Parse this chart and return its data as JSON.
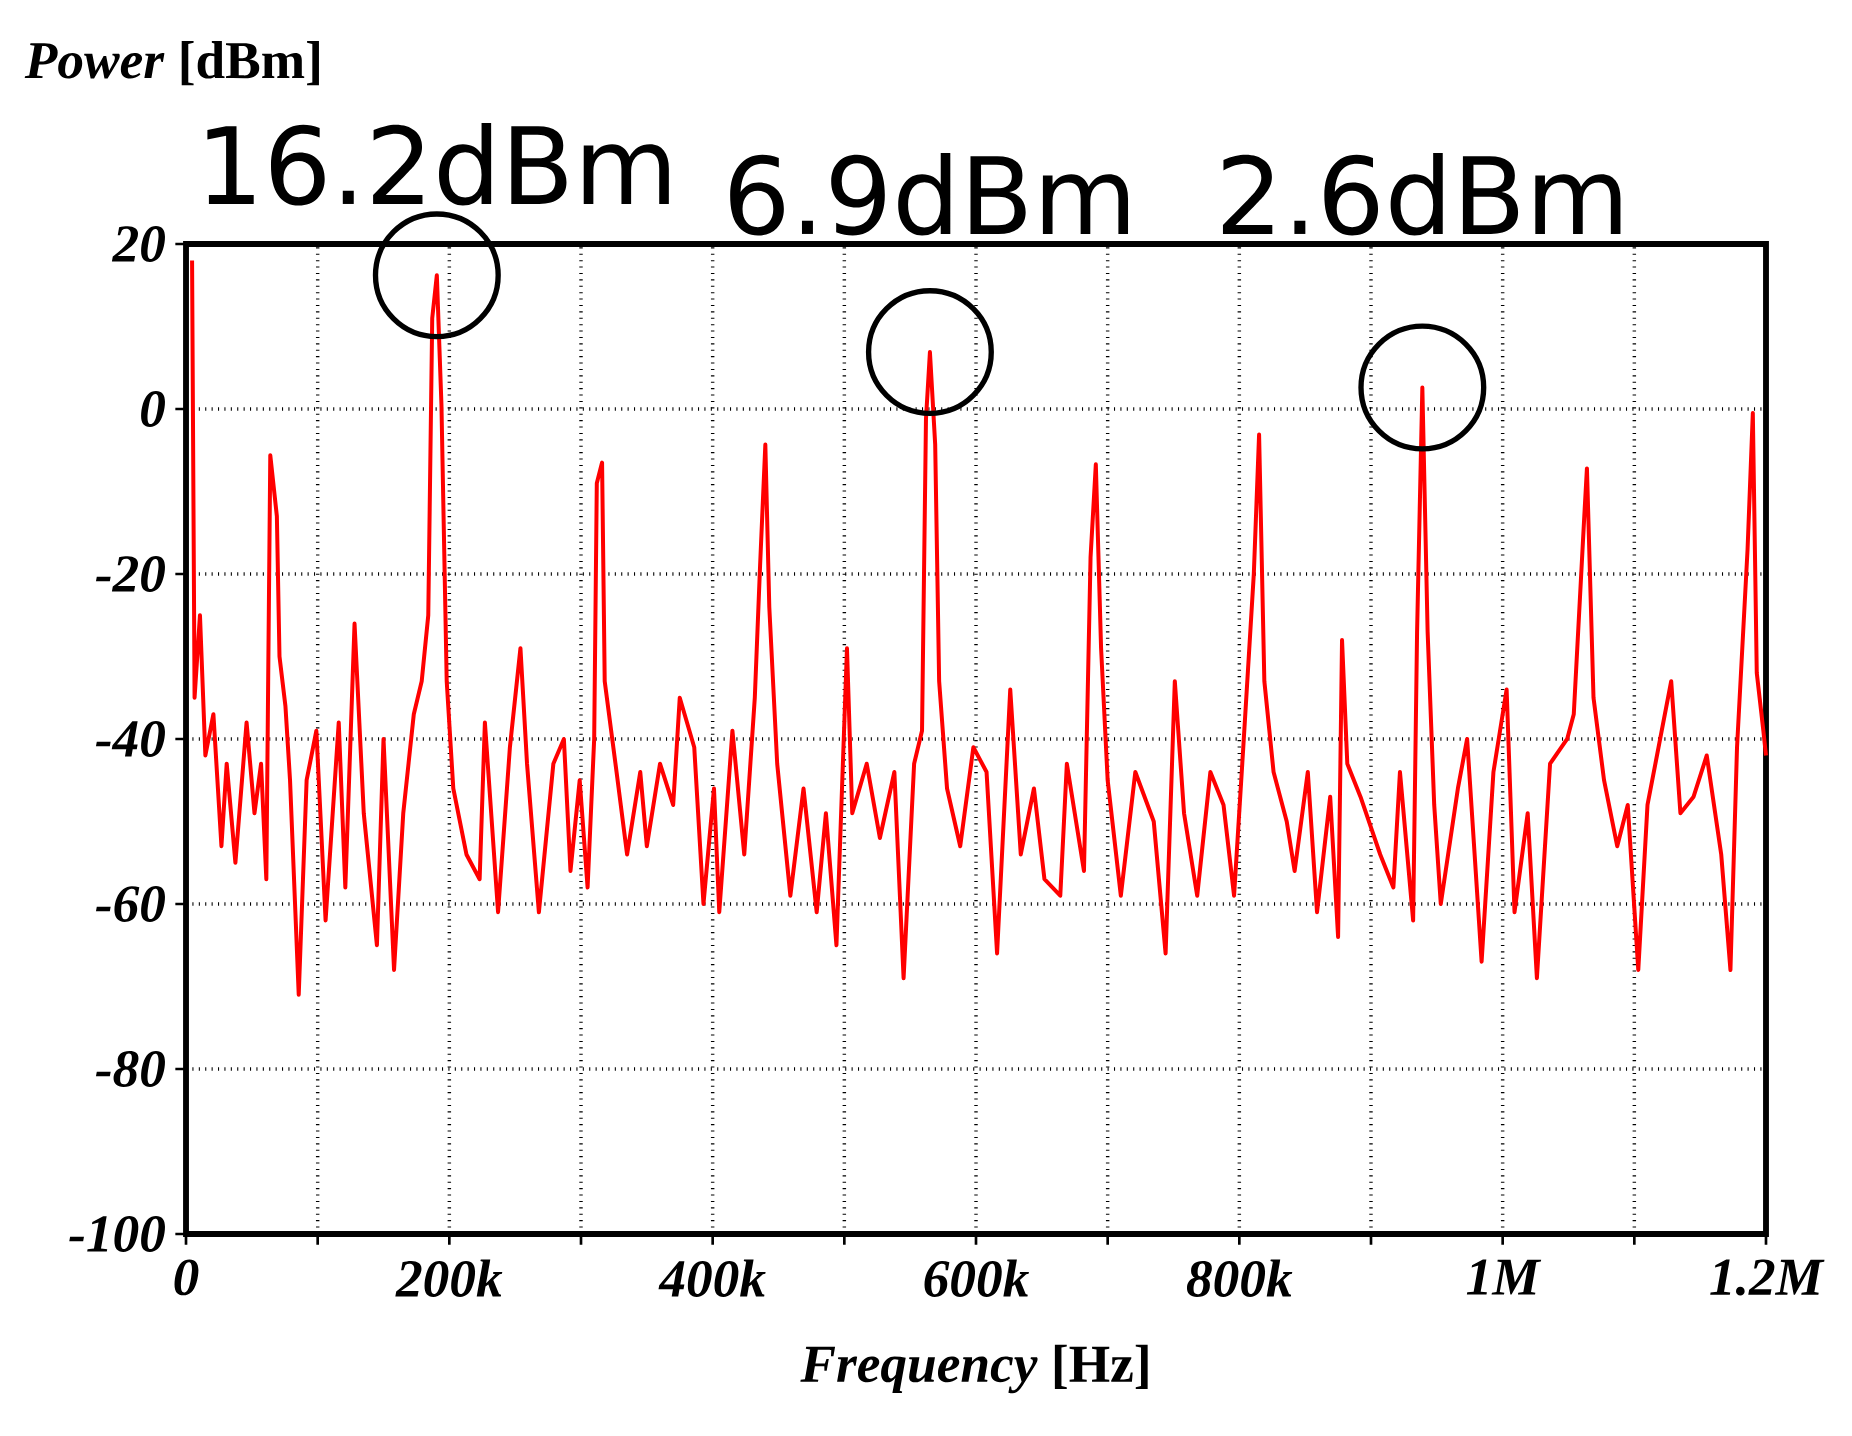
{
  "chart_data": {
    "type": "line",
    "xlabel": "*Frequency* [Hz]",
    "ylabel": "*Power* [dBm]",
    "xlim": [
      0,
      1200000
    ],
    "ylim": [
      -100,
      20
    ],
    "xticks": [
      0,
      {
        "value": 100000,
        "label": null
      },
      {
        "value": 200000,
        "label": "200k"
      },
      {
        "value": 300000,
        "label": null
      },
      {
        "value": 400000,
        "label": "400k"
      },
      {
        "value": 500000,
        "label": null
      },
      {
        "value": 600000,
        "label": "600k"
      },
      {
        "value": 700000,
        "label": null
      },
      {
        "value": 800000,
        "label": "800k"
      },
      {
        "value": 900000,
        "label": null
      },
      {
        "value": 1000000,
        "label": "1M"
      },
      {
        "value": 1100000,
        "label": null
      },
      {
        "value": 1200000,
        "label": "1.2M"
      }
    ],
    "yticks": [
      -100,
      -80,
      -60,
      -40,
      -20,
      0,
      20
    ],
    "grid": true,
    "annotations": [
      {
        "text": "16.2dBm",
        "x": 190500,
        "y": 16.2
      },
      {
        "text": "6.9dBm",
        "x": 565000,
        "y": 6.9
      },
      {
        "text": "2.6dBm",
        "x": 939000,
        "y": 2.6
      }
    ],
    "series": [
      {
        "color": "#ff0000",
        "x": [
          4600,
          6500,
          10600,
          14700,
          20800,
          26900,
          30900,
          37500,
          46000,
          52000,
          57000,
          61000,
          64000,
          69000,
          71000,
          75500,
          79000,
          85600,
          91600,
          99000,
          106000,
          116000,
          121000,
          128000,
          135000,
          145000,
          150000,
          158000,
          165000,
          173000,
          179000,
          184000,
          187000,
          190500,
          194000,
          198000,
          203000,
          213000,
          223000,
          227000,
          237000,
          246000,
          254000,
          259000,
          268000,
          279000,
          287000,
          292000,
          299000,
          305000,
          310000,
          312000,
          316000,
          318000,
          327000,
          335000,
          345000,
          350000,
          360000,
          370000,
          375000,
          386000,
          393000,
          401000,
          405000,
          415000,
          424000,
          432000,
          436000,
          440000,
          443000,
          449000,
          459000,
          469000,
          479000,
          486000,
          494000,
          502000,
          506000,
          517000,
          527000,
          538000,
          545000,
          553000,
          559000,
          562000,
          565000,
          569000,
          572000,
          578000,
          588000,
          598000,
          608000,
          616000,
          626000,
          634000,
          644000,
          652000,
          664000,
          669000,
          682000,
          687000,
          691000,
          695000,
          700000,
          710000,
          721000,
          735000,
          744000,
          751000,
          758000,
          768000,
          778000,
          788000,
          796000,
          803000,
          811000,
          815000,
          819000,
          826000,
          836000,
          842000,
          852000,
          859000,
          869000,
          875000,
          878000,
          882000,
          892000,
          907000,
          917000,
          922000,
          932000,
          935000,
          939000,
          943000,
          948000,
          953000,
          966000,
          973000,
          984000,
          993000,
          1003000,
          1009000,
          1019000,
          1026000,
          1036000,
          1049000,
          1054000,
          1062000,
          1064000,
          1069000,
          1077000,
          1087000,
          1095000,
          1103000,
          1110000,
          1128000,
          1135000,
          1145000,
          1155000,
          1166000,
          1173000,
          1178000,
          1186000,
          1190000,
          1193000,
          1198000,
          1200000
        ],
        "values": [
          18,
          -35,
          -25,
          -42,
          -37,
          -53,
          -43,
          -55,
          -38,
          -49,
          -43,
          -57,
          -5.6,
          -13,
          -30,
          -36,
          -45,
          -71,
          -45,
          -39,
          -62,
          -38,
          -58,
          -26,
          -49,
          -65,
          -40,
          -68,
          -49,
          -37,
          -33,
          -25,
          11,
          16.2,
          0.5,
          -33,
          -46,
          -54,
          -57,
          -38,
          -61,
          -41,
          -29,
          -43,
          -61,
          -43,
          -40,
          -56,
          -45,
          -58,
          -40,
          -9,
          -6.5,
          -33,
          -44,
          -54,
          -44,
          -53,
          -43,
          -48,
          -35,
          -41,
          -60,
          -46,
          -61,
          -39,
          -54,
          -35,
          -19,
          -4.3,
          -24,
          -43,
          -59,
          -46,
          -61,
          -49,
          -65,
          -29,
          -49,
          -43,
          -52,
          -44,
          -69,
          -43,
          -39,
          -1.2,
          6.9,
          -4.3,
          -33,
          -46,
          -53,
          -41,
          -44,
          -66,
          -34,
          -54,
          -46,
          -57,
          -59,
          -43,
          -56,
          -18,
          -6.7,
          -29,
          -45,
          -59,
          -44,
          -50,
          -66,
          -33,
          -49,
          -59,
          -44,
          -48,
          -59,
          -41,
          -20,
          -3.1,
          -33,
          -44,
          -50,
          -56,
          -44,
          -61,
          -47,
          -64,
          -28,
          -43,
          -47,
          -54,
          -58,
          -44,
          -62,
          -27,
          2.6,
          -27,
          -48,
          -60,
          -46,
          -40,
          -67,
          -44,
          -34,
          -61,
          -49,
          -69,
          -43,
          -40,
          -37,
          -13,
          -7.2,
          -35,
          -45,
          -53,
          -48,
          -68,
          -48,
          -33,
          -49,
          -47,
          -42,
          -54,
          -68,
          -41,
          -17,
          -0.5,
          -32,
          -39,
          -42
        ]
      }
    ]
  }
}
